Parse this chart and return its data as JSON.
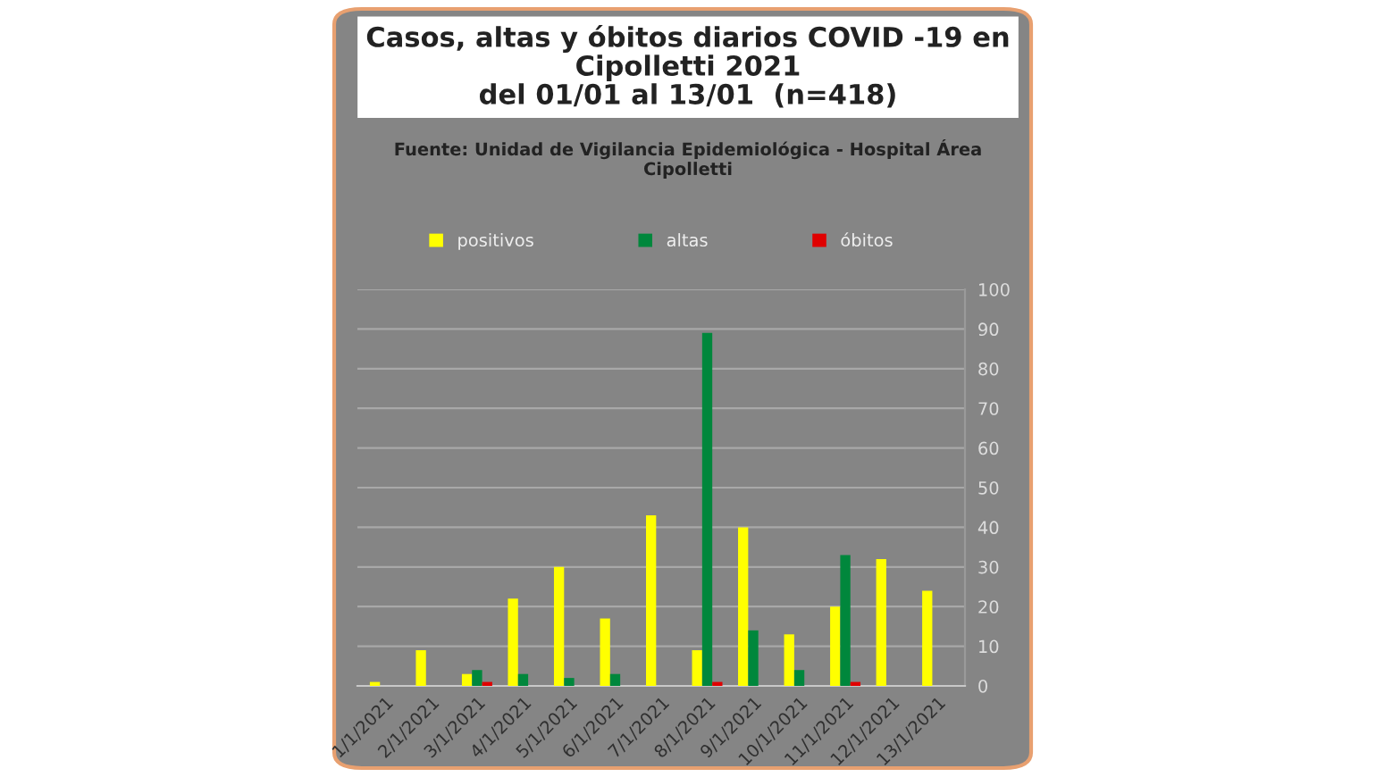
{
  "chart_data": {
    "type": "bar",
    "title": "Casos, altas y óbitos diarios COVID -19 en\nCipolletti 2021\ndel 01/01 al 13/01  (n=418)",
    "subtitle": "Fuente: Unidad de Vigilancia Epidemiológica - Hospital Área\nCipolletti",
    "categories": [
      "1/1/2021",
      "2/1/2021",
      "3/1/2021",
      "4/1/2021",
      "5/1/2021",
      "6/1/2021",
      "7/1/2021",
      "8/1/2021",
      "9/1/2021",
      "10/1/2021",
      "11/1/2021",
      "12/1/2021",
      "13/1/2021"
    ],
    "series": [
      {
        "name": "positivos",
        "color": "#ffff00",
        "values": [
          1,
          9,
          3,
          22,
          30,
          17,
          43,
          9,
          40,
          13,
          20,
          32,
          24
        ]
      },
      {
        "name": "altas",
        "color": "#00873c",
        "values": [
          0,
          0,
          4,
          3,
          2,
          3,
          0,
          89,
          14,
          4,
          33,
          0,
          0
        ]
      },
      {
        "name": "óbitos",
        "color": "#e00000",
        "values": [
          0,
          0,
          1,
          0,
          0,
          0,
          0,
          1,
          0,
          0,
          1,
          0,
          0
        ]
      }
    ],
    "ylim": [
      0,
      100
    ],
    "yticks": [
      0,
      10,
      20,
      30,
      40,
      50,
      60,
      70,
      80,
      90,
      100
    ],
    "grid": "y",
    "legend": "top"
  }
}
